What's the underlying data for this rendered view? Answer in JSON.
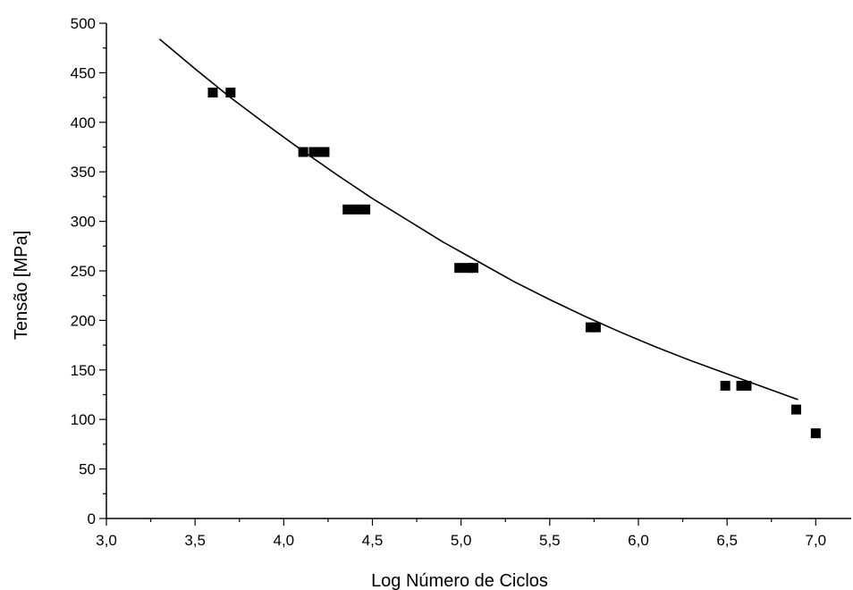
{
  "chart_data": {
    "type": "scatter",
    "title": "",
    "xlabel": "Log Número de Ciclos",
    "ylabel": "Tensão [MPa]",
    "xlim": [
      3.0,
      7.2
    ],
    "ylim": [
      0,
      500
    ],
    "xticks": [
      3.0,
      3.5,
      4.0,
      4.5,
      5.0,
      5.5,
      6.0,
      6.5,
      7.0
    ],
    "xtick_labels": [
      "3,0",
      "3,5",
      "4,0",
      "4,5",
      "5,0",
      "5,5",
      "6,0",
      "6,5",
      "7,0"
    ],
    "yticks": [
      0,
      50,
      100,
      150,
      200,
      250,
      300,
      350,
      400,
      450,
      500
    ],
    "ytick_labels": [
      "0",
      "50",
      "100",
      "150",
      "200",
      "250",
      "300",
      "350",
      "400",
      "450",
      "500"
    ],
    "grid": false,
    "legend": "none",
    "series": [
      {
        "kind": "points",
        "marker": "square",
        "color": "#000000",
        "points": [
          [
            3.6,
            430
          ],
          [
            3.7,
            430
          ],
          [
            4.11,
            370
          ],
          [
            4.17,
            370
          ],
          [
            4.21,
            370
          ],
          [
            4.23,
            370
          ],
          [
            4.36,
            312
          ],
          [
            4.41,
            312
          ],
          [
            4.46,
            312
          ],
          [
            4.99,
            253
          ],
          [
            5.04,
            253
          ],
          [
            5.07,
            253
          ],
          [
            5.73,
            193
          ],
          [
            5.76,
            193
          ],
          [
            6.49,
            134
          ],
          [
            6.58,
            134
          ],
          [
            6.61,
            134
          ],
          [
            6.89,
            110
          ],
          [
            7.0,
            86
          ]
        ]
      },
      {
        "kind": "fit",
        "color": "#000000",
        "points": [
          [
            3.3,
            484
          ],
          [
            3.5,
            454
          ],
          [
            3.7,
            425
          ],
          [
            3.9,
            398
          ],
          [
            4.1,
            372
          ],
          [
            4.3,
            347
          ],
          [
            4.5,
            323
          ],
          [
            4.7,
            301
          ],
          [
            4.9,
            279
          ],
          [
            5.1,
            259
          ],
          [
            5.3,
            239
          ],
          [
            5.5,
            221
          ],
          [
            5.7,
            204
          ],
          [
            5.9,
            188
          ],
          [
            6.1,
            173
          ],
          [
            6.3,
            159
          ],
          [
            6.5,
            146
          ],
          [
            6.7,
            133
          ],
          [
            6.9,
            120
          ]
        ]
      }
    ]
  }
}
